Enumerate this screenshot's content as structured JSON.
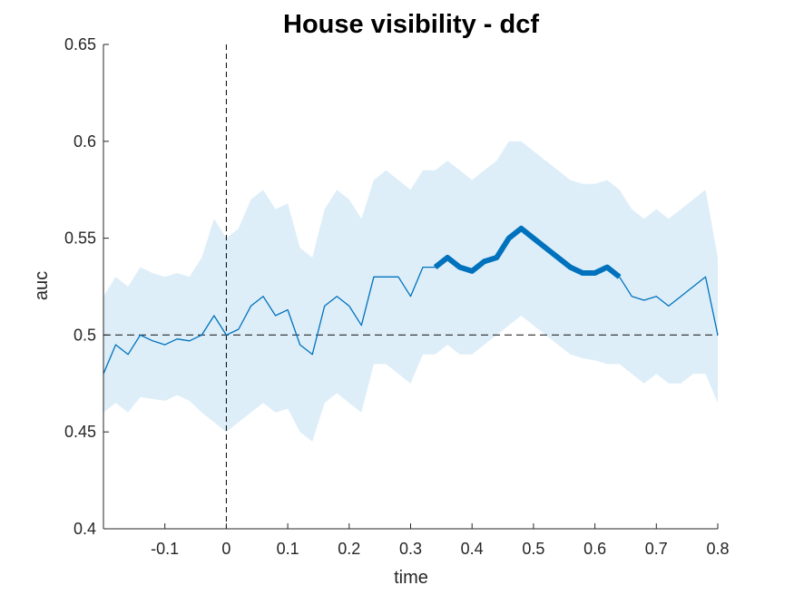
{
  "chart_data": {
    "type": "line",
    "title": "House visibility - dcf",
    "xlabel": "time",
    "ylabel": "auc",
    "xlim": [
      -0.2,
      0.8
    ],
    "ylim": [
      0.4,
      0.65
    ],
    "xticks": [
      "-0.1",
      "0",
      "0.1",
      "0.2",
      "0.3",
      "0.4",
      "0.5",
      "0.6",
      "0.7",
      "0.8"
    ],
    "xtick_values": [
      -0.1,
      0,
      0.1,
      0.2,
      0.3,
      0.4,
      0.5,
      0.6,
      0.7,
      0.8
    ],
    "yticks": [
      "0.4",
      "0.45",
      "0.5",
      "0.55",
      "0.6",
      "0.65"
    ],
    "ytick_values": [
      0.4,
      0.45,
      0.5,
      0.55,
      0.6,
      0.65
    ],
    "grid": false,
    "chance_level": 0.5,
    "stimulus_onset": 0,
    "significant_interval": [
      0.33,
      0.65
    ],
    "colors": {
      "line": "#0072BD",
      "band": "#DDEEF9",
      "reference": "#000000"
    },
    "series": [
      {
        "x": [
          -0.2,
          -0.18,
          -0.16,
          -0.14,
          -0.12,
          -0.1,
          -0.08,
          -0.06,
          -0.04,
          -0.02,
          0,
          0.02,
          0.04,
          0.06,
          0.08,
          0.1,
          0.12,
          0.14,
          0.16,
          0.18,
          0.2,
          0.22,
          0.24,
          0.26,
          0.28,
          0.3,
          0.32,
          0.34,
          0.36,
          0.38,
          0.4,
          0.42,
          0.44,
          0.46,
          0.48,
          0.5,
          0.52,
          0.54,
          0.56,
          0.58,
          0.6,
          0.62,
          0.64,
          0.66,
          0.68,
          0.7,
          0.72,
          0.74,
          0.76,
          0.78,
          0.8
        ],
        "y": [
          0.48,
          0.495,
          0.49,
          0.5,
          0.497,
          0.495,
          0.498,
          0.497,
          0.5,
          0.51,
          0.5,
          0.503,
          0.515,
          0.52,
          0.51,
          0.513,
          0.495,
          0.49,
          0.515,
          0.52,
          0.515,
          0.505,
          0.53,
          0.53,
          0.53,
          0.52,
          0.535,
          0.535,
          0.54,
          0.535,
          0.533,
          0.538,
          0.54,
          0.55,
          0.555,
          0.55,
          0.545,
          0.54,
          0.535,
          0.532,
          0.532,
          0.535,
          0.53,
          0.52,
          0.518,
          0.52,
          0.515,
          0.52,
          0.525,
          0.53,
          0.5
        ],
        "lower": [
          0.46,
          0.465,
          0.46,
          0.468,
          0.467,
          0.466,
          0.469,
          0.466,
          0.46,
          0.455,
          0.45,
          0.455,
          0.46,
          0.465,
          0.46,
          0.462,
          0.45,
          0.445,
          0.465,
          0.47,
          0.465,
          0.46,
          0.485,
          0.485,
          0.48,
          0.475,
          0.49,
          0.49,
          0.495,
          0.49,
          0.49,
          0.495,
          0.5,
          0.505,
          0.51,
          0.505,
          0.5,
          0.495,
          0.49,
          0.488,
          0.487,
          0.485,
          0.485,
          0.48,
          0.475,
          0.48,
          0.475,
          0.475,
          0.48,
          0.48,
          0.465
        ],
        "upper": [
          0.52,
          0.53,
          0.525,
          0.535,
          0.532,
          0.53,
          0.532,
          0.53,
          0.54,
          0.56,
          0.55,
          0.555,
          0.57,
          0.575,
          0.565,
          0.568,
          0.545,
          0.54,
          0.565,
          0.575,
          0.57,
          0.56,
          0.58,
          0.585,
          0.58,
          0.575,
          0.585,
          0.585,
          0.59,
          0.585,
          0.58,
          0.585,
          0.59,
          0.6,
          0.6,
          0.595,
          0.59,
          0.585,
          0.58,
          0.578,
          0.578,
          0.58,
          0.575,
          0.565,
          0.56,
          0.565,
          0.56,
          0.565,
          0.57,
          0.575,
          0.54
        ]
      }
    ]
  }
}
